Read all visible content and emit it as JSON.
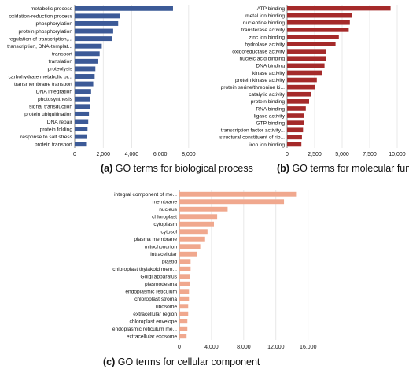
{
  "chart_data": [
    {
      "type": "bar",
      "orientation": "horizontal",
      "panel_letter": "(a)",
      "caption": "GO terms for biological process",
      "color": "#3c5a97",
      "categories": [
        "metabolic process",
        "oxidation-reduction process",
        "phosphorylation",
        "protein phosphorylation",
        "regulation of transcription,...",
        "transcription, DNA-templat...",
        "transport",
        "translation",
        "proteolysis",
        "carbohydrate metabolic pr...",
        "transmembrane transport",
        "DNA integration",
        "photosynthesis",
        "signal transduction",
        "protein ubiquitination",
        "DNA repair",
        "protein folding",
        "response to salt stress",
        "protein transport"
      ],
      "values": [
        6900,
        3150,
        3050,
        2700,
        2650,
        1900,
        1750,
        1600,
        1450,
        1400,
        1300,
        1150,
        1100,
        1050,
        1000,
        950,
        900,
        850,
        800
      ],
      "xlim": [
        0,
        9000
      ],
      "xticks": [
        0,
        2000,
        4000,
        6000,
        8000
      ],
      "xtick_labels": [
        "0",
        "2,000",
        "4,000",
        "6,000",
        "8,000"
      ],
      "grid": true
    },
    {
      "type": "bar",
      "orientation": "horizontal",
      "panel_letter": "(b)",
      "caption": "GO terms for molecular function",
      "color": "#a52a2a",
      "categories": [
        "ATP binding",
        "metal ion binding",
        "nucleotide binding",
        "transferase activity",
        "zinc ion binding",
        "hydrolase activity",
        "oxidoreductase activity",
        "nucleic acid binding",
        "DNA binding",
        "kinase activity",
        "protein kinase activity",
        "protein serine/threonine ki...",
        "catalytic activity",
        "protein binding",
        "RNA binding",
        "ligase activity",
        "GTP binding",
        "transcription factor activity...",
        "structural constituent of rib...",
        "iron ion binding"
      ],
      "values": [
        9400,
        5900,
        5700,
        5600,
        4700,
        4400,
        3500,
        3500,
        3400,
        3200,
        2700,
        2500,
        2200,
        2000,
        1700,
        1500,
        1500,
        1450,
        1350,
        1300
      ],
      "xlim": [
        0,
        10500
      ],
      "xticks": [
        0,
        2500,
        5000,
        7500,
        10000
      ],
      "xtick_labels": [
        "0",
        "2,500",
        "5,000",
        "7,500",
        "10,000"
      ],
      "grid": true
    },
    {
      "type": "bar",
      "orientation": "horizontal",
      "panel_letter": "(c)",
      "caption": "GO terms for cellular component",
      "color": "#f0a88e",
      "categories": [
        "integral component of me...",
        "membrane",
        "nucleus",
        "chloroplast",
        "cytoplasm",
        "cytosol",
        "plasma membrane",
        "mitochondrion",
        "intracellular",
        "plastid",
        "chloroplast thylakoid mem...",
        "Golgi apparatus",
        "plasmodesma",
        "endoplasmic reticulum",
        "chloroplast stroma",
        "ribosome",
        "extracellular region",
        "chloroplast envelope",
        "endoplasmic reticulum me...",
        "extracellular exosome"
      ],
      "values": [
        14500,
        13000,
        6000,
        4700,
        4300,
        3500,
        3200,
        2600,
        2200,
        1400,
        1400,
        1300,
        1300,
        1200,
        1200,
        1100,
        1100,
        1000,
        1000,
        900
      ],
      "xlim": [
        0,
        17000
      ],
      "xticks": [
        0,
        4000,
        8000,
        12000,
        16000
      ],
      "xtick_labels": [
        "0",
        "4,000",
        "8,000",
        "12,000",
        "16,000"
      ],
      "grid": true
    }
  ]
}
